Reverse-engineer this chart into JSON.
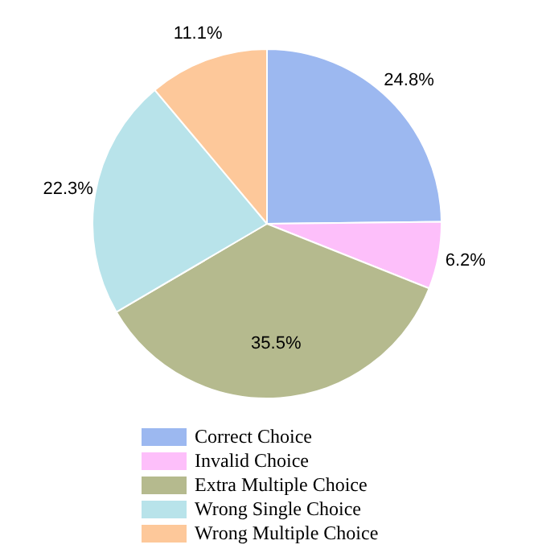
{
  "chart_data": {
    "type": "pie",
    "categories": [
      "Correct Choice",
      "Invalid Choice",
      "Extra Multiple Choice",
      "Wrong Single Choice",
      "Wrong Multiple Choice"
    ],
    "values": [
      24.8,
      6.2,
      35.5,
      22.3,
      11.1
    ],
    "value_labels": [
      "24.8%",
      "6.2%",
      "35.5%",
      "22.3%",
      "11.1%"
    ],
    "colors": [
      "#9cb8f0",
      "#fdbffa",
      "#b5ba8e",
      "#b8e3ea",
      "#fdc89a"
    ],
    "legend": "bottom"
  }
}
